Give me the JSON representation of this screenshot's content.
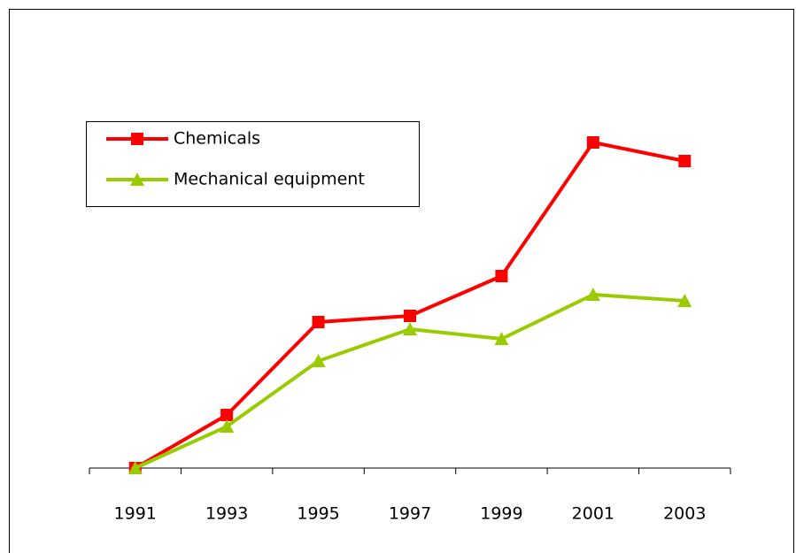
{
  "chart_data": {
    "type": "line",
    "categories": [
      "1991",
      "1993",
      "1995",
      "1997",
      "1999",
      "2001",
      "2003"
    ],
    "series": [
      {
        "name": "Chemicals",
        "color": "#ff0000",
        "marker": "square",
        "values": [
          0,
          60,
          165,
          172,
          217,
          368,
          347
        ]
      },
      {
        "name": "Mechanical equipment",
        "color": "#99cc00",
        "marker": "triangle",
        "values": [
          0,
          47,
          121,
          157,
          146,
          196,
          189
        ]
      }
    ],
    "ylim": [
      0,
      400
    ],
    "grid": false,
    "legend": "upper left"
  }
}
